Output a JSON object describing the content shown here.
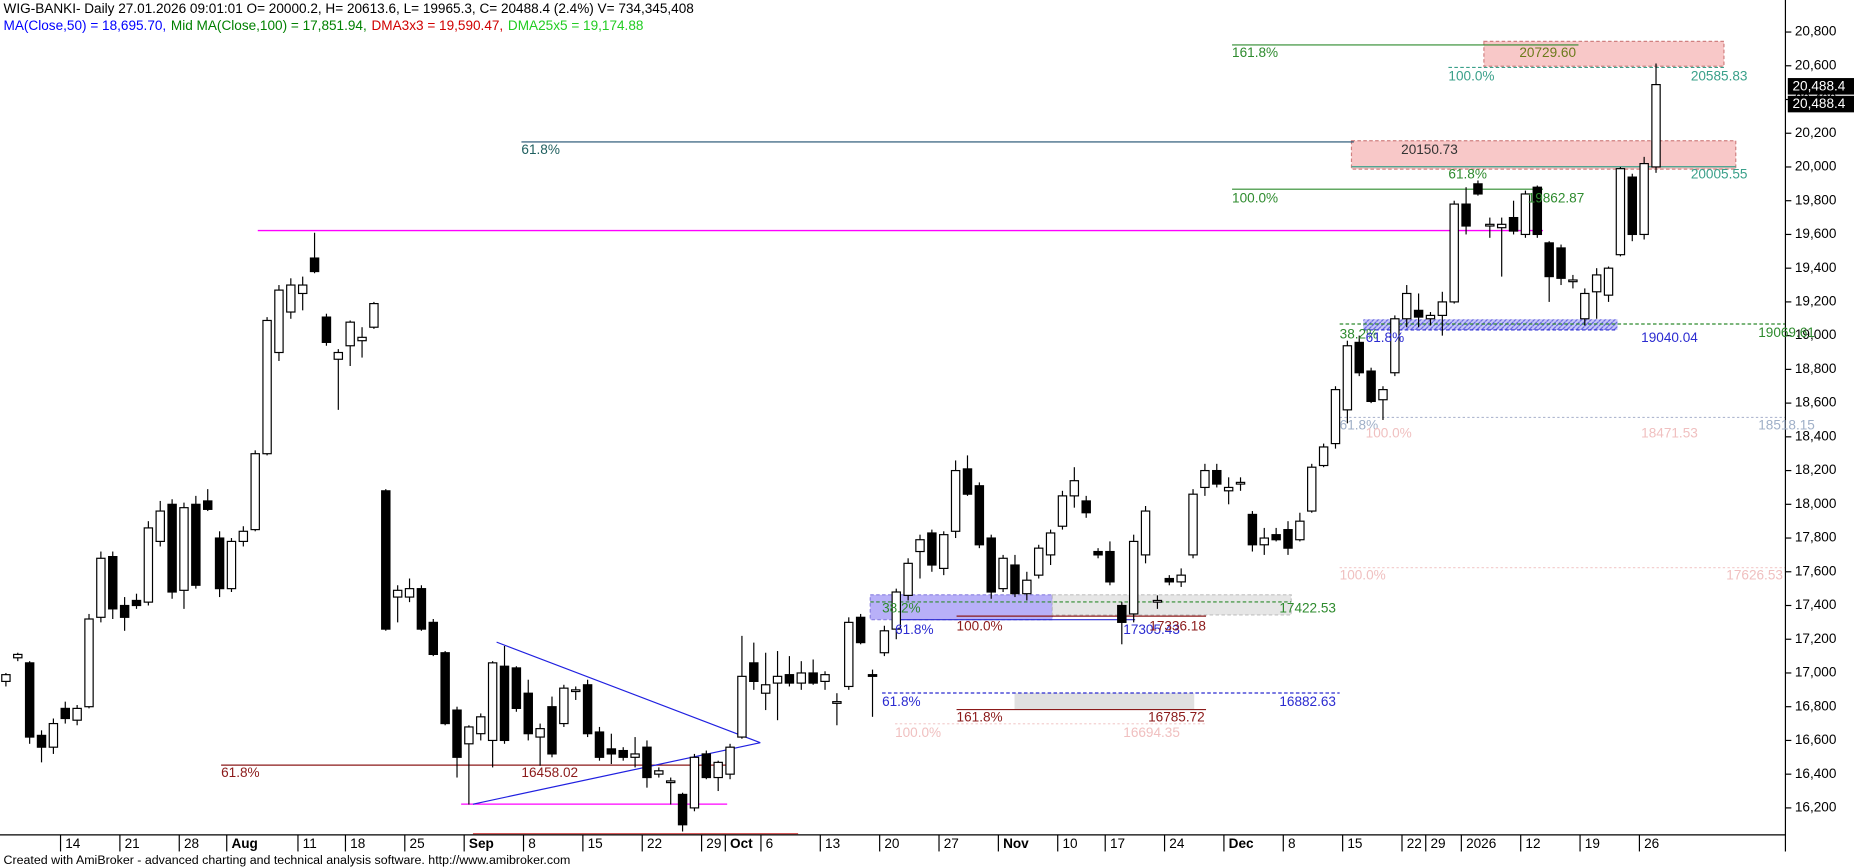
{
  "chart_data": {
    "type": "candlestick",
    "title": "WIG-BANKI- Daily 27.01.2026 09:01:01 O= 20000.2, H= 20613.6, L= 19965.3, C= 20488.4 (2.4%) V= 734,345,408",
    "legend": [
      {
        "name": "MA(Close,50) = 18,695.70,",
        "color": "#0000ff"
      },
      {
        "name": "Mid MA(Close,100) = 17,851.94,",
        "color": "#008000"
      },
      {
        "name": "DMA3x3 = 19,590.47,",
        "color": "#d00000"
      },
      {
        "name": "DMA25x5 = 19,174.88",
        "color": "#22cc22"
      }
    ],
    "footer": "Created with AmiBroker - advanced charting and technical analysis software. http://www.amibroker.com",
    "up_color": "#ffffff",
    "down_color": "#000000",
    "categories": [
      null,
      null,
      null,
      null,
      null,
      "14",
      null,
      null,
      null,
      null,
      "21",
      null,
      null,
      null,
      null,
      "28",
      null,
      null,
      null,
      "Aug",
      null,
      null,
      null,
      null,
      null,
      "11",
      null,
      null,
      null,
      "18",
      null,
      null,
      null,
      null,
      "25",
      null,
      null,
      null,
      null,
      "Sep",
      null,
      null,
      null,
      null,
      "8",
      null,
      null,
      null,
      null,
      "15",
      null,
      null,
      null,
      null,
      "22",
      null,
      null,
      null,
      null,
      "29",
      null,
      "Oct",
      null,
      null,
      "6",
      null,
      null,
      null,
      null,
      "13",
      null,
      null,
      null,
      null,
      "20",
      null,
      null,
      null,
      null,
      "27",
      null,
      null,
      null,
      null,
      "Nov",
      null,
      null,
      null,
      null,
      "10",
      null,
      null,
      null,
      "17",
      null,
      null,
      null,
      null,
      "24",
      null,
      null,
      null,
      null,
      "Dec",
      null,
      null,
      null,
      null,
      "8",
      null,
      null,
      null,
      null,
      "15",
      null,
      null,
      null,
      null,
      "22",
      null,
      "29",
      null,
      null,
      "2026",
      null,
      null,
      null,
      null,
      "12",
      null,
      null,
      null,
      null,
      "19",
      null,
      null,
      null,
      null,
      "26",
      null
    ],
    "open": [
      16950,
      17090,
      17060,
      16630,
      16560,
      16790,
      16720,
      16800,
      17330,
      17690,
      17400,
      17430,
      17420,
      17780,
      18000,
      17490,
      18000,
      18020,
      17800,
      17500,
      17780,
      17850,
      18300,
      18900,
      19140,
      19250,
      19460,
      19110,
      18860,
      18940,
      18970,
      19050,
      18080,
      17450,
      17450,
      17500,
      17300,
      17120,
      16780,
      16580,
      16640,
      16600,
      17040,
      17030,
      16880,
      16620,
      16800,
      16700,
      16890,
      16930,
      16650,
      16550,
      16540,
      16500,
      16560,
      16400,
      16350,
      16280,
      16200,
      16520,
      16380,
      16400,
      16620,
      17060,
      16880,
      16940,
      16990,
      16940,
      17000,
      16950,
      16820,
      16920,
      17330,
      16990,
      17120,
      17260,
      17460,
      17720,
      17830,
      17620,
      17840,
      18210,
      18110,
      17800,
      17500,
      17640,
      17470,
      17580,
      17700,
      17870,
      18050,
      18020,
      17720,
      17720,
      17400,
      17350,
      17700,
      17420,
      17560,
      17540,
      17700,
      18100,
      18200,
      18080,
      18120,
      17940,
      17760,
      17820,
      17850,
      17790,
      17960,
      18230,
      18360,
      18560,
      18960,
      18790,
      18620,
      18780,
      19100,
      19150,
      19100,
      19120,
      19200,
      19780,
      19900,
      19650,
      19640,
      19700,
      19600,
      19880,
      19550,
      19520,
      19320,
      19100,
      19260,
      19240,
      19480,
      19940,
      19600,
      20000.2
    ],
    "high": [
      17000,
      17120,
      17070,
      16660,
      16730,
      16830,
      16810,
      17350,
      17720,
      17720,
      17450,
      17470,
      17900,
      18020,
      18030,
      18010,
      18050,
      18090,
      17840,
      17800,
      17870,
      18320,
      19110,
      19300,
      19340,
      19350,
      19610,
      19130,
      18920,
      19090,
      19050,
      19200,
      18090,
      17520,
      17560,
      17520,
      17320,
      17130,
      16800,
      16690,
      16760,
      17070,
      17160,
      17040,
      16960,
      16700,
      16860,
      16930,
      16920,
      16960,
      16680,
      16640,
      16560,
      16620,
      16600,
      16440,
      16380,
      16290,
      16520,
      16540,
      16480,
      16580,
      17220,
      17180,
      17120,
      17130,
      17100,
      17070,
      17080,
      17010,
      16880,
      17330,
      17350,
      17020,
      17280,
      17500,
      17680,
      17820,
      17850,
      17840,
      18260,
      18290,
      18130,
      17820,
      17700,
      17700,
      17600,
      17760,
      17850,
      18080,
      18220,
      18050,
      17740,
      17780,
      17420,
      17820,
      17990,
      17460,
      17580,
      17620,
      18090,
      18240,
      18240,
      18160,
      18160,
      17960,
      17860,
      17860,
      17900,
      17950,
      18240,
      18360,
      18700,
      18970,
      19000,
      18810,
      18700,
      19120,
      19300,
      19250,
      19140,
      19260,
      19800,
      19880,
      19920,
      19700,
      19700,
      19800,
      19860,
      19890,
      19560,
      19540,
      19360,
      19280,
      19400,
      19410,
      20000,
      19960,
      20060,
      20613.6
    ],
    "low": [
      16920,
      17070,
      16580,
      16470,
      16520,
      16700,
      16690,
      16790,
      17300,
      17320,
      17250,
      17380,
      17400,
      17750,
      17440,
      17380,
      17500,
      17960,
      17450,
      17480,
      17750,
      17840,
      18290,
      18850,
      19100,
      19150,
      19370,
      18940,
      18560,
      18820,
      18870,
      19040,
      17250,
      17300,
      17420,
      17250,
      17100,
      16690,
      16380,
      16220,
      16600,
      16440,
      16580,
      16770,
      16600,
      16450,
      16500,
      16680,
      16840,
      16620,
      16480,
      16460,
      16480,
      16440,
      16320,
      16380,
      16220,
      16060,
      16180,
      16370,
      16300,
      16370,
      16610,
      16900,
      16780,
      16720,
      16920,
      16900,
      16930,
      16900,
      16690,
      16900,
      17170,
      16740,
      17100,
      17200,
      17430,
      17560,
      17600,
      17580,
      17800,
      18050,
      17740,
      17440,
      17480,
      17450,
      17430,
      17560,
      17640,
      17850,
      17980,
      17920,
      17680,
      17520,
      17170,
      17300,
      17650,
      17380,
      17520,
      17510,
      17680,
      18050,
      18100,
      18000,
      18080,
      17720,
      17700,
      17780,
      17700,
      17780,
      17950,
      18220,
      18330,
      18480,
      18760,
      18600,
      18500,
      18760,
      19050,
      19050,
      19060,
      19000,
      19190,
      19600,
      19830,
      19580,
      19350,
      19600,
      19580,
      19580,
      19200,
      19300,
      19280,
      19060,
      19100,
      19200,
      19470,
      19560,
      19570,
      19965.3
    ],
    "close": [
      16990,
      17110,
      16620,
      16560,
      16700,
      16730,
      16790,
      17320,
      17680,
      17380,
      17330,
      17400,
      17860,
      17960,
      17480,
      17980,
      17520,
      17970,
      17500,
      17780,
      17840,
      18300,
      19090,
      19270,
      19300,
      19300,
      19380,
      18960,
      18900,
      19080,
      18990,
      19190,
      17260,
      17490,
      17500,
      17260,
      17110,
      16700,
      16500,
      16680,
      16740,
      17060,
      16600,
      16790,
      16640,
      16670,
      16520,
      16910,
      16900,
      16640,
      16500,
      16520,
      16500,
      16520,
      16380,
      16420,
      16360,
      16100,
      16500,
      16380,
      16470,
      16560,
      16980,
      16950,
      16930,
      16980,
      16940,
      17000,
      16940,
      16990,
      16830,
      17300,
      17180,
      16980,
      17250,
      17480,
      17650,
      17790,
      17640,
      17820,
      18200,
      18060,
      17760,
      17480,
      17680,
      17470,
      17550,
      17740,
      17830,
      18050,
      18140,
      17950,
      17700,
      17540,
      17300,
      17780,
      17960,
      17430,
      17540,
      17580,
      18060,
      18200,
      18120,
      18100,
      18130,
      17760,
      17800,
      17790,
      17740,
      17900,
      18220,
      18340,
      18680,
      18940,
      18780,
      18610,
      18680,
      19100,
      19250,
      19110,
      19120,
      19200,
      19780,
      19650,
      19840,
      19660,
      19660,
      19620,
      19840,
      19600,
      19350,
      19340,
      19330,
      19250,
      19360,
      19400,
      19990,
      19600,
      20020,
      20488.4
    ],
    "ylim": [
      16040,
      20990
    ],
    "yticks": [
      {
        "value": 16200,
        "label": "16,200"
      },
      {
        "value": 16400,
        "label": "16,400"
      },
      {
        "value": 16600,
        "label": "16,600"
      },
      {
        "value": 16800,
        "label": "16,800"
      },
      {
        "value": 17000,
        "label": "17,000"
      },
      {
        "value": 17200,
        "label": "17,200"
      },
      {
        "value": 17400,
        "label": "17,400"
      },
      {
        "value": 17600,
        "label": "17,600"
      },
      {
        "value": 17800,
        "label": "17,800"
      },
      {
        "value": 18000,
        "label": "18,000"
      },
      {
        "value": 18200,
        "label": "18,200"
      },
      {
        "value": 18400,
        "label": "18,400"
      },
      {
        "value": 18600,
        "label": "18,600"
      },
      {
        "value": 18800,
        "label": "18,800"
      },
      {
        "value": 19000,
        "label": "19,000"
      },
      {
        "value": 19200,
        "label": "19,200"
      },
      {
        "value": 19400,
        "label": "19,400"
      },
      {
        "value": 19600,
        "label": "19,600"
      },
      {
        "value": 19800,
        "label": "19,800"
      },
      {
        "value": 20000,
        "label": "20,000"
      },
      {
        "value": 20200,
        "label": "20,200"
      },
      {
        "value": 20400,
        "label": "20,400"
      },
      {
        "value": 20600,
        "label": "20,600"
      },
      {
        "value": 20800,
        "label": "20,800"
      }
    ],
    "grid": false,
    "price_tags": [
      "20,488.4",
      "20,488.4"
    ],
    "annotations": [
      {
        "text": "161.8%",
        "color": "#2e8b2e"
      },
      {
        "text": "20729.60",
        "color": "#6b7a1a"
      },
      {
        "text": "100.0%",
        "color": "#3aa08a"
      },
      {
        "text": "20585.83",
        "color": "#3aa08a"
      },
      {
        "text": "61.8%",
        "color": "#1f5f5f"
      },
      {
        "text": "20150.73",
        "color": "#333333"
      },
      {
        "text": "20005.55",
        "color": "#3aa08a"
      },
      {
        "text": "100.0%",
        "color": "#2e8b2e"
      },
      {
        "text": "61.8%",
        "color": "#2e8b2e"
      },
      {
        "text": "19862.87",
        "color": "#2e8b2e"
      },
      {
        "text": "38.2%",
        "color": "#2e8b2e"
      },
      {
        "text": "61.8%",
        "color": "#2b2bd0"
      },
      {
        "text": "19069.61",
        "color": "#2e8b2e"
      },
      {
        "text": "19040.04",
        "color": "#2b2bd0"
      },
      {
        "text": "61.8%",
        "color": "#a0b0c8"
      },
      {
        "text": "100.0%",
        "color": "#f0c0c0"
      },
      {
        "text": "18518.15",
        "color": "#a0b0c8"
      },
      {
        "text": "18471.53",
        "color": "#f0c0c0"
      },
      {
        "text": "100.0%",
        "color": "#f0c0c0"
      },
      {
        "text": "17626.53",
        "color": "#f0c0c0"
      },
      {
        "text": "38.2%",
        "color": "#2e8b2e"
      },
      {
        "text": "17422.53",
        "color": "#2e8b2e"
      },
      {
        "text": "61.8%",
        "color": "#2b2bd0"
      },
      {
        "text": "100.0%",
        "color": "#8b1a1a"
      },
      {
        "text": "17305.43",
        "color": "#2b2bd0"
      },
      {
        "text": "17336.18",
        "color": "#8b1a1a"
      },
      {
        "text": "61.8%",
        "color": "#2b2bd0"
      },
      {
        "text": "16882.63",
        "color": "#2b2bd0"
      },
      {
        "text": "161.8%",
        "color": "#8b1a1a"
      },
      {
        "text": "16785.72",
        "color": "#8b1a1a"
      },
      {
        "text": "100.0%",
        "color": "#f0c0c0"
      },
      {
        "text": "16694.35",
        "color": "#f0c0c0"
      },
      {
        "text": "61.8%",
        "color": "#8b1a1a"
      },
      {
        "text": "16458.02",
        "color": "#8b1a1a"
      }
    ]
  }
}
